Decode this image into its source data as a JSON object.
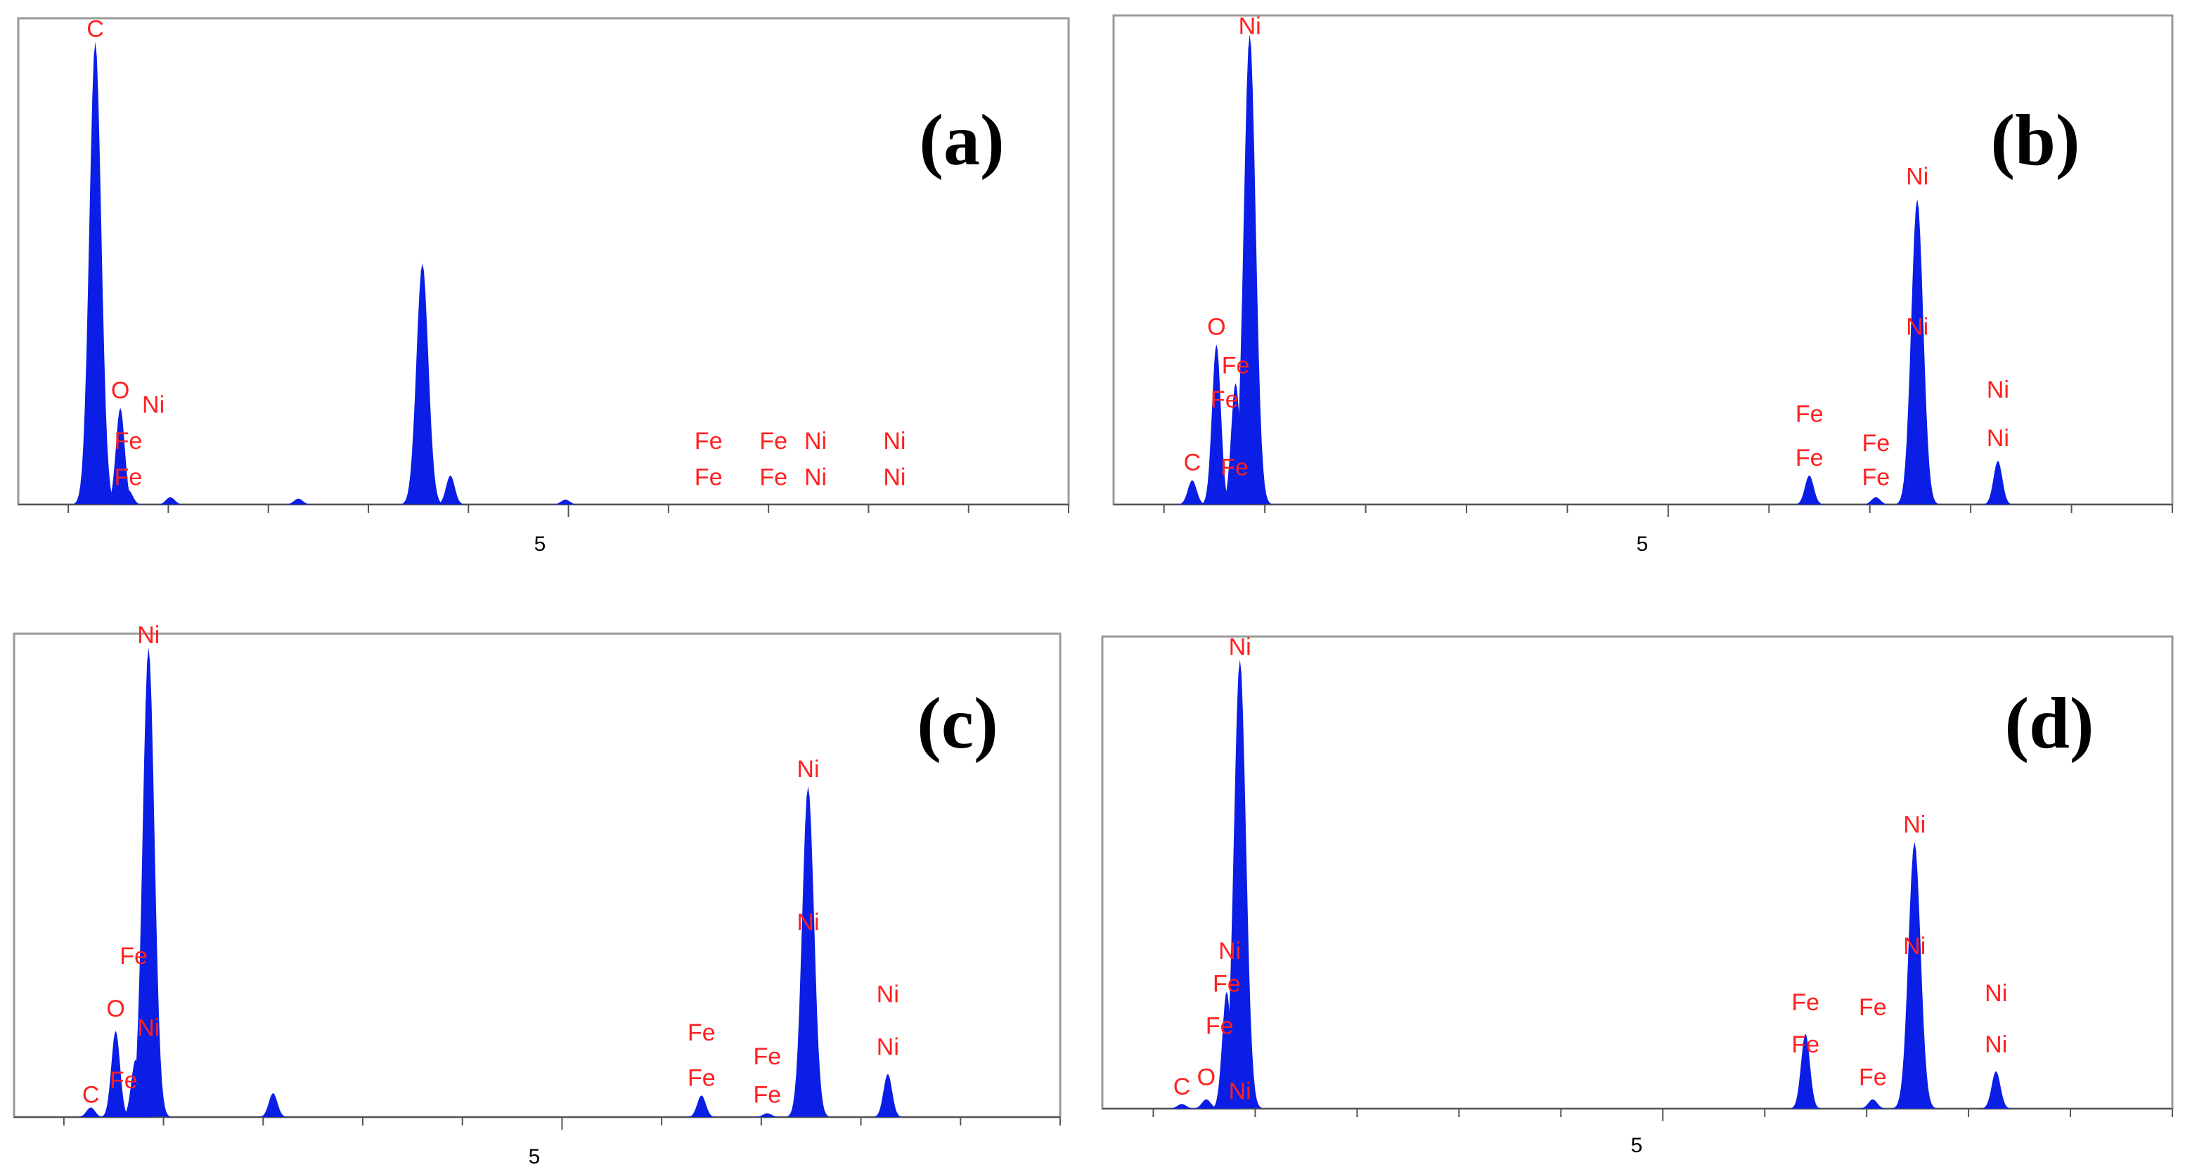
{
  "colors": {
    "spectrum": "#0a1ee6",
    "element_label": "#ff2020",
    "frame": "#9a9a9a"
  },
  "chart_data": [
    {
      "type": "area",
      "panel_label": "(a)",
      "xlabel": "",
      "ylabel": "",
      "xlim": [
        -0.5,
        10.0
      ],
      "ylim": [
        0,
        1.0
      ],
      "x_ticks": [
        5
      ],
      "tick_labels": [
        "5"
      ],
      "peaks": [
        {
          "x": 0.27,
          "y": 0.96
        },
        {
          "x": 0.52,
          "y": 0.2
        },
        {
          "x": 0.6,
          "y": 0.03
        },
        {
          "x": 1.02,
          "y": 0.015
        },
        {
          "x": 2.3,
          "y": 0.012
        },
        {
          "x": 3.54,
          "y": 0.5
        },
        {
          "x": 3.82,
          "y": 0.06
        },
        {
          "x": 4.97,
          "y": 0.01
        }
      ],
      "element_labels": [
        {
          "text": "C",
          "x": 0.27,
          "y": 0.97
        },
        {
          "text": "O",
          "x": 0.52,
          "y": 0.22
        },
        {
          "text": "Ni",
          "x": 0.85,
          "y": 0.19
        },
        {
          "text": "Fe",
          "x": 0.6,
          "y": 0.115
        },
        {
          "text": "Fe",
          "x": 0.6,
          "y": 0.04
        },
        {
          "text": "Fe",
          "x": 6.4,
          "y": 0.115
        },
        {
          "text": "Fe",
          "x": 6.4,
          "y": 0.04
        },
        {
          "text": "Fe",
          "x": 7.05,
          "y": 0.115
        },
        {
          "text": "Ni",
          "x": 7.47,
          "y": 0.115
        },
        {
          "text": "Fe",
          "x": 7.05,
          "y": 0.04
        },
        {
          "text": "Ni",
          "x": 7.47,
          "y": 0.04
        },
        {
          "text": "Ni",
          "x": 8.26,
          "y": 0.115
        },
        {
          "text": "Ni",
          "x": 8.26,
          "y": 0.04
        }
      ]
    },
    {
      "type": "area",
      "panel_label": "(b)",
      "xlabel": "",
      "ylabel": "",
      "xlim": [
        -0.5,
        10.0
      ],
      "ylim": [
        0,
        1.0
      ],
      "x_ticks": [
        5
      ],
      "tick_labels": [
        "5"
      ],
      "peaks": [
        {
          "x": 0.28,
          "y": 0.05
        },
        {
          "x": 0.52,
          "y": 0.33
        },
        {
          "x": 0.71,
          "y": 0.25
        },
        {
          "x": 0.85,
          "y": 0.97
        },
        {
          "x": 6.4,
          "y": 0.06
        },
        {
          "x": 7.06,
          "y": 0.015
        },
        {
          "x": 7.47,
          "y": 0.63
        },
        {
          "x": 8.27,
          "y": 0.09
        }
      ],
      "element_labels": [
        {
          "text": "Ni",
          "x": 0.85,
          "y": 0.97
        },
        {
          "text": "O",
          "x": 0.52,
          "y": 0.35
        },
        {
          "text": "Fe",
          "x": 0.71,
          "y": 0.27
        },
        {
          "text": "Fe",
          "x": 0.6,
          "y": 0.2
        },
        {
          "text": "C",
          "x": 0.28,
          "y": 0.07
        },
        {
          "text": "Fe",
          "x": 0.7,
          "y": 0.06
        },
        {
          "text": "Ni",
          "x": 7.47,
          "y": 0.66
        },
        {
          "text": "Ni",
          "x": 7.47,
          "y": 0.35
        },
        {
          "text": "Fe",
          "x": 6.4,
          "y": 0.17
        },
        {
          "text": "Fe",
          "x": 6.4,
          "y": 0.08
        },
        {
          "text": "Fe",
          "x": 7.06,
          "y": 0.11
        },
        {
          "text": "Fe",
          "x": 7.06,
          "y": 0.04
        },
        {
          "text": "Ni",
          "x": 8.27,
          "y": 0.22
        },
        {
          "text": "Ni",
          "x": 8.27,
          "y": 0.12
        }
      ]
    },
    {
      "type": "area",
      "panel_label": "(c)",
      "xlabel": "",
      "ylabel": "",
      "xlim": [
        -0.5,
        10.0
      ],
      "ylim": [
        0,
        1.0
      ],
      "x_ticks": [
        5
      ],
      "tick_labels": [
        "5"
      ],
      "peaks": [
        {
          "x": 0.27,
          "y": 0.02
        },
        {
          "x": 0.52,
          "y": 0.18
        },
        {
          "x": 0.72,
          "y": 0.12
        },
        {
          "x": 0.85,
          "y": 0.98
        },
        {
          "x": 2.1,
          "y": 0.05
        },
        {
          "x": 6.4,
          "y": 0.045
        },
        {
          "x": 7.06,
          "y": 0.008
        },
        {
          "x": 7.47,
          "y": 0.69
        },
        {
          "x": 8.27,
          "y": 0.09
        }
      ],
      "element_labels": [
        {
          "text": "Ni",
          "x": 0.85,
          "y": 0.99
        },
        {
          "text": "Fe",
          "x": 0.7,
          "y": 0.32
        },
        {
          "text": "O",
          "x": 0.52,
          "y": 0.21
        },
        {
          "text": "Ni",
          "x": 0.85,
          "y": 0.17
        },
        {
          "text": "C",
          "x": 0.27,
          "y": 0.03
        },
        {
          "text": "Fe",
          "x": 0.6,
          "y": 0.06
        },
        {
          "text": "Ni",
          "x": 7.47,
          "y": 0.71
        },
        {
          "text": "Ni",
          "x": 7.47,
          "y": 0.39
        },
        {
          "text": "Fe",
          "x": 6.4,
          "y": 0.16
        },
        {
          "text": "Fe",
          "x": 6.4,
          "y": 0.065
        },
        {
          "text": "Fe",
          "x": 7.06,
          "y": 0.11
        },
        {
          "text": "Fe",
          "x": 7.06,
          "y": 0.03
        },
        {
          "text": "Ni",
          "x": 8.27,
          "y": 0.24
        },
        {
          "text": "Ni",
          "x": 8.27,
          "y": 0.13
        }
      ]
    },
    {
      "type": "area",
      "panel_label": "(d)",
      "xlabel": "",
      "ylabel": "",
      "xlim": [
        -0.5,
        10.0
      ],
      "ylim": [
        0,
        1.0
      ],
      "x_ticks": [
        5
      ],
      "tick_labels": [
        "5"
      ],
      "peaks": [
        {
          "x": 0.28,
          "y": 0.01
        },
        {
          "x": 0.52,
          "y": 0.02
        },
        {
          "x": 0.72,
          "y": 0.25
        },
        {
          "x": 0.85,
          "y": 0.96
        },
        {
          "x": 6.4,
          "y": 0.16
        },
        {
          "x": 7.06,
          "y": 0.02
        },
        {
          "x": 7.47,
          "y": 0.57
        },
        {
          "x": 8.27,
          "y": 0.08
        }
      ],
      "element_labels": [
        {
          "text": "Ni",
          "x": 0.85,
          "y": 0.97
        },
        {
          "text": "Ni",
          "x": 0.75,
          "y": 0.32
        },
        {
          "text": "Fe",
          "x": 0.72,
          "y": 0.25
        },
        {
          "text": "Fe",
          "x": 0.65,
          "y": 0.16
        },
        {
          "text": "C",
          "x": 0.28,
          "y": 0.03
        },
        {
          "text": "O",
          "x": 0.52,
          "y": 0.05
        },
        {
          "text": "Ni",
          "x": 0.85,
          "y": 0.02
        },
        {
          "text": "Ni",
          "x": 7.47,
          "y": 0.59
        },
        {
          "text": "Ni",
          "x": 7.47,
          "y": 0.33
        },
        {
          "text": "Fe",
          "x": 6.4,
          "y": 0.21
        },
        {
          "text": "Fe",
          "x": 6.4,
          "y": 0.12
        },
        {
          "text": "Fe",
          "x": 7.06,
          "y": 0.2
        },
        {
          "text": "Fe",
          "x": 7.06,
          "y": 0.05
        },
        {
          "text": "Ni",
          "x": 8.27,
          "y": 0.23
        },
        {
          "text": "Ni",
          "x": 8.27,
          "y": 0.12
        }
      ]
    }
  ]
}
